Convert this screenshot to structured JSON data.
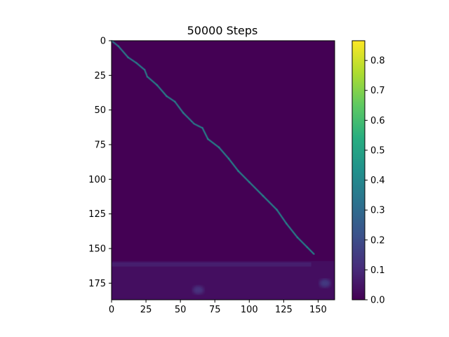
{
  "chart_data": {
    "type": "heatmap",
    "title": "50000 Steps",
    "xlabel": "",
    "ylabel": "",
    "x_range": [
      0,
      162
    ],
    "y_range": [
      0,
      187
    ],
    "x_ticks": [
      0,
      25,
      50,
      75,
      100,
      125,
      150
    ],
    "y_ticks": [
      0,
      25,
      50,
      75,
      100,
      125,
      150,
      175
    ],
    "colormap": "viridis",
    "colorbar": {
      "range": [
        0,
        0.866
      ],
      "ticks": [
        0.0,
        0.1,
        0.2,
        0.3,
        0.4,
        0.5,
        0.6,
        0.7,
        0.8
      ],
      "tick_labels": [
        "0.0",
        "0.1",
        "0.2",
        "0.3",
        "0.4",
        "0.5",
        "0.6",
        "0.7",
        "0.8"
      ]
    },
    "background_value": 0.0,
    "alignment_path": [
      {
        "x": 0,
        "y": 0,
        "value": 0.35
      },
      {
        "x": 5,
        "y": 4,
        "value": 0.4
      },
      {
        "x": 12,
        "y": 12,
        "value": 0.38
      },
      {
        "x": 18,
        "y": 16,
        "value": 0.4
      },
      {
        "x": 24,
        "y": 21,
        "value": 0.38
      },
      {
        "x": 26,
        "y": 26,
        "value": 0.4
      },
      {
        "x": 33,
        "y": 32,
        "value": 0.42
      },
      {
        "x": 40,
        "y": 40,
        "value": 0.4
      },
      {
        "x": 46,
        "y": 44,
        "value": 0.4
      },
      {
        "x": 52,
        "y": 52,
        "value": 0.38
      },
      {
        "x": 58,
        "y": 58,
        "value": 0.4
      },
      {
        "x": 60,
        "y": 60,
        "value": 0.36
      },
      {
        "x": 66,
        "y": 63,
        "value": 0.4
      },
      {
        "x": 70,
        "y": 71,
        "value": 0.42
      },
      {
        "x": 78,
        "y": 77,
        "value": 0.4
      },
      {
        "x": 85,
        "y": 85,
        "value": 0.4
      },
      {
        "x": 92,
        "y": 94,
        "value": 0.42
      },
      {
        "x": 100,
        "y": 102,
        "value": 0.4
      },
      {
        "x": 110,
        "y": 112,
        "value": 0.42
      },
      {
        "x": 120,
        "y": 122,
        "value": 0.4
      },
      {
        "x": 127,
        "y": 132,
        "value": 0.42
      },
      {
        "x": 135,
        "y": 142,
        "value": 0.4
      },
      {
        "x": 142,
        "y": 149,
        "value": 0.4
      },
      {
        "x": 147,
        "y": 154,
        "value": 0.42
      }
    ],
    "noise_band": {
      "y_start": 159,
      "y_end": 187,
      "x_start": 0,
      "x_end": 162,
      "value": 0.06
    },
    "bright_spots": [
      {
        "x": 63,
        "y": 180,
        "value": 0.12
      },
      {
        "x": 155,
        "y": 175,
        "value": 0.14
      }
    ]
  }
}
